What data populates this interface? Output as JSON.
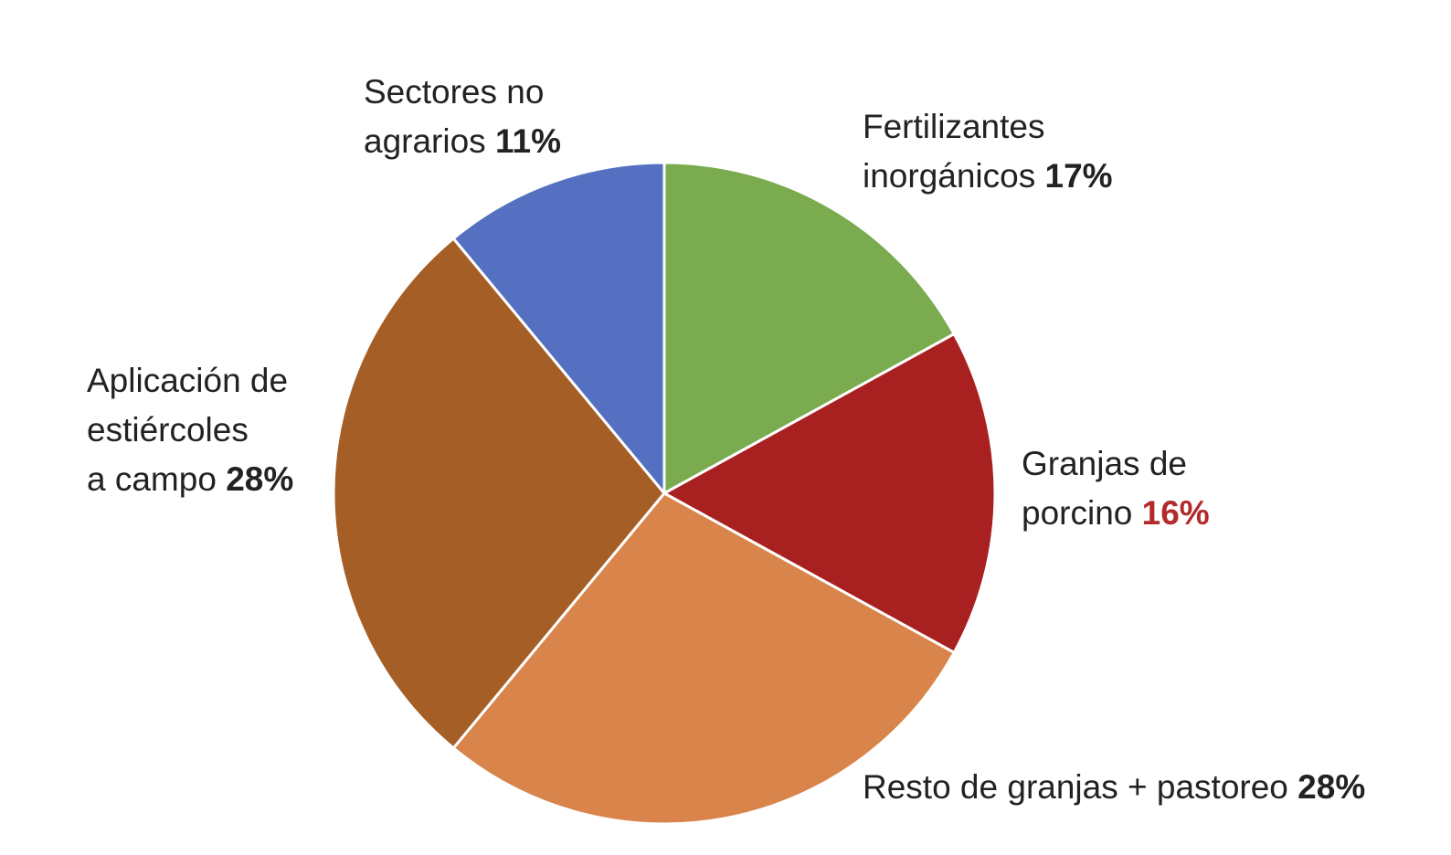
{
  "chart_data": {
    "type": "pie",
    "title": "",
    "start_angle_deg": 0,
    "direction": "clockwise",
    "slices": [
      {
        "label_lines": [
          "Fertilizantes",
          "inorgánicos"
        ],
        "value": 17,
        "value_label": "17%",
        "color": "#7aab4f",
        "value_color": "#222222"
      },
      {
        "label_lines": [
          "Granjas de",
          "porcino"
        ],
        "value": 16,
        "value_label": "16%",
        "color": "#a82020",
        "value_color": "#b22a2a"
      },
      {
        "label_lines": [
          "Resto de granjas + pastoreo"
        ],
        "value": 28,
        "value_label": "28%",
        "color": "#d9844a",
        "value_color": "#222222"
      },
      {
        "label_lines": [
          "Aplicación de",
          "estiércoles",
          "a campo"
        ],
        "value": 28,
        "value_label": "28%",
        "color": "#a45e26",
        "value_color": "#222222"
      },
      {
        "label_lines": [
          "Sectores no",
          "agrarios"
        ],
        "value": 11,
        "value_label": "11%",
        "color": "#5570c0",
        "value_color": "#222222"
      }
    ]
  }
}
